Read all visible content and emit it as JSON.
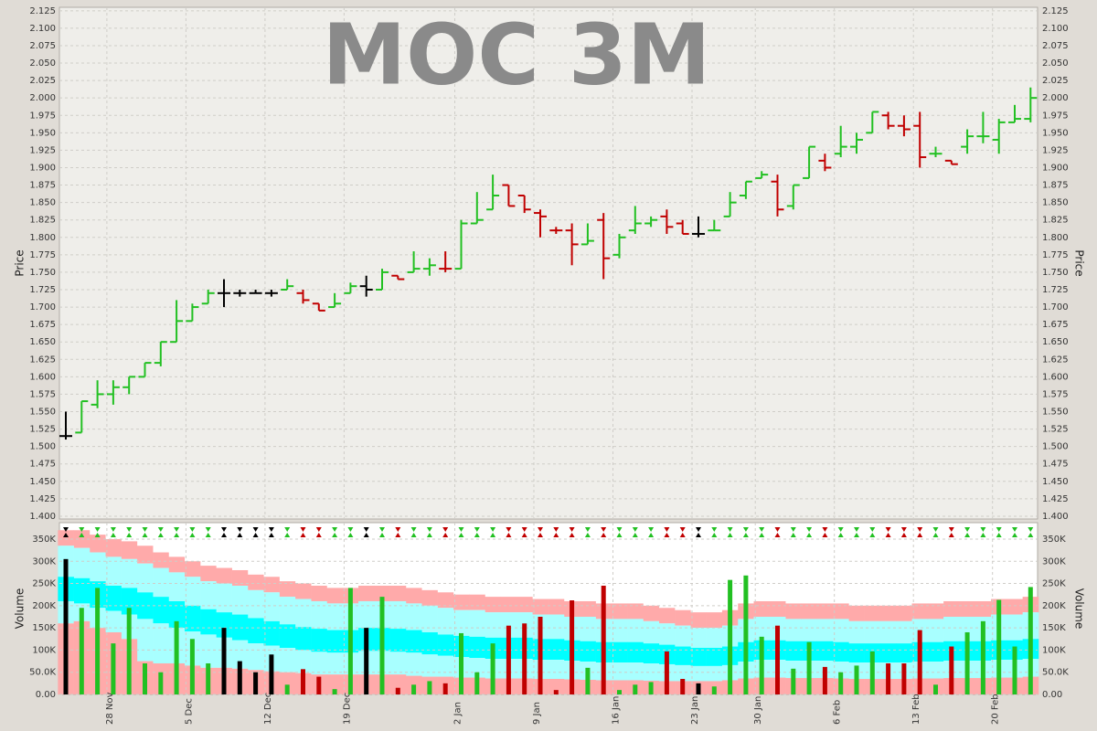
{
  "chart_data": [
    {
      "type": "ohlc",
      "title": "MOC 3M",
      "y_label": "Price",
      "grid": true,
      "ylim": [
        1.396,
        2.13
      ],
      "yticks": [
        {
          "value": 1.4,
          "label": "1.400"
        },
        {
          "value": 1.425,
          "label": "1.425"
        },
        {
          "value": 1.45,
          "label": "1.450"
        },
        {
          "value": 1.475,
          "label": "1.475"
        },
        {
          "value": 1.5,
          "label": "1.500"
        },
        {
          "value": 1.525,
          "label": "1.525"
        },
        {
          "value": 1.55,
          "label": "1.550"
        },
        {
          "value": 1.575,
          "label": "1.575"
        },
        {
          "value": 1.6,
          "label": "1.600"
        },
        {
          "value": 1.625,
          "label": "1.625"
        },
        {
          "value": 1.65,
          "label": "1.650"
        },
        {
          "value": 1.675,
          "label": "1.675"
        },
        {
          "value": 1.7,
          "label": "1.700"
        },
        {
          "value": 1.725,
          "label": "1.725"
        },
        {
          "value": 1.75,
          "label": "1.750"
        },
        {
          "value": 1.775,
          "label": "1.775"
        },
        {
          "value": 1.8,
          "label": "1.800"
        },
        {
          "value": 1.825,
          "label": "1.825"
        },
        {
          "value": 1.85,
          "label": "1.850"
        },
        {
          "value": 1.875,
          "label": "1.875"
        },
        {
          "value": 1.9,
          "label": "1.900"
        },
        {
          "value": 1.925,
          "label": "1.925"
        },
        {
          "value": 1.95,
          "label": "1.950"
        },
        {
          "value": 1.975,
          "label": "1.975"
        },
        {
          "value": 2.0,
          "label": "2.000"
        },
        {
          "value": 2.025,
          "label": "2.025"
        },
        {
          "value": 2.05,
          "label": "2.050"
        },
        {
          "value": 2.075,
          "label": "2.075"
        },
        {
          "value": 2.1,
          "label": "2.100"
        },
        {
          "value": 2.125,
          "label": "2.125"
        }
      ],
      "open": [
        1.515,
        1.52,
        1.56,
        1.575,
        1.585,
        1.6,
        1.62,
        1.65,
        1.68,
        1.705,
        1.72,
        1.72,
        1.72,
        1.72,
        1.725,
        1.72,
        1.705,
        1.7,
        1.72,
        1.73,
        1.725,
        1.745,
        1.75,
        1.755,
        1.755,
        1.755,
        1.82,
        1.84,
        1.875,
        1.86,
        1.835,
        1.81,
        1.81,
        1.79,
        1.825,
        1.775,
        1.81,
        1.82,
        1.83,
        1.82,
        1.805,
        1.81,
        1.83,
        1.86,
        1.885,
        1.88,
        1.845,
        1.885,
        1.91,
        1.92,
        1.93,
        1.95,
        1.975,
        1.96,
        1.96,
        1.92,
        1.91,
        1.93,
        1.945,
        1.94,
        1.965,
        1.97
      ],
      "high": [
        1.55,
        1.565,
        1.595,
        1.595,
        1.6,
        1.62,
        1.65,
        1.71,
        1.705,
        1.725,
        1.74,
        1.725,
        1.725,
        1.725,
        1.74,
        1.725,
        1.705,
        1.72,
        1.735,
        1.745,
        1.755,
        1.745,
        1.78,
        1.77,
        1.78,
        1.825,
        1.865,
        1.89,
        1.875,
        1.86,
        1.84,
        1.815,
        1.82,
        1.82,
        1.835,
        1.805,
        1.845,
        1.83,
        1.84,
        1.825,
        1.83,
        1.825,
        1.865,
        1.88,
        1.895,
        1.89,
        1.875,
        1.93,
        1.92,
        1.96,
        1.95,
        1.98,
        1.98,
        1.975,
        1.98,
        1.93,
        1.91,
        1.955,
        1.98,
        1.97,
        1.99,
        2.015
      ],
      "low": [
        1.51,
        1.52,
        1.555,
        1.56,
        1.575,
        1.6,
        1.615,
        1.65,
        1.68,
        1.705,
        1.7,
        1.715,
        1.72,
        1.715,
        1.725,
        1.705,
        1.695,
        1.7,
        1.72,
        1.715,
        1.725,
        1.74,
        1.75,
        1.745,
        1.75,
        1.755,
        1.82,
        1.84,
        1.845,
        1.835,
        1.8,
        1.805,
        1.76,
        1.79,
        1.74,
        1.77,
        1.805,
        1.815,
        1.805,
        1.805,
        1.8,
        1.81,
        1.83,
        1.855,
        1.885,
        1.83,
        1.84,
        1.885,
        1.895,
        1.915,
        1.92,
        1.95,
        1.955,
        1.945,
        1.9,
        1.915,
        1.905,
        1.92,
        1.935,
        1.92,
        1.965,
        1.965
      ],
      "close": [
        1.515,
        1.565,
        1.575,
        1.585,
        1.6,
        1.62,
        1.65,
        1.68,
        1.7,
        1.72,
        1.72,
        1.72,
        1.72,
        1.72,
        1.73,
        1.71,
        1.695,
        1.705,
        1.73,
        1.725,
        1.75,
        1.74,
        1.755,
        1.76,
        1.755,
        1.82,
        1.825,
        1.86,
        1.845,
        1.84,
        1.83,
        1.81,
        1.79,
        1.795,
        1.77,
        1.8,
        1.82,
        1.825,
        1.815,
        1.805,
        1.805,
        1.81,
        1.85,
        1.88,
        1.89,
        1.84,
        1.875,
        1.93,
        1.9,
        1.93,
        1.94,
        1.98,
        1.96,
        1.955,
        1.915,
        1.92,
        1.905,
        1.945,
        1.945,
        1.965,
        1.97,
        2.0
      ],
      "colors": [
        "#000000",
        "#22c022",
        "#22c022",
        "#22c022",
        "#22c022",
        "#22c022",
        "#22c022",
        "#22c022",
        "#22c022",
        "#22c022",
        "#000000",
        "#000000",
        "#000000",
        "#000000",
        "#22c022",
        "#c00000",
        "#c00000",
        "#22c022",
        "#22c022",
        "#000000",
        "#22c022",
        "#c00000",
        "#22c022",
        "#22c022",
        "#c00000",
        "#22c022",
        "#22c022",
        "#22c022",
        "#c00000",
        "#c00000",
        "#c00000",
        "#c00000",
        "#c00000",
        "#22c022",
        "#c00000",
        "#22c022",
        "#22c022",
        "#22c022",
        "#c00000",
        "#c00000",
        "#000000",
        "#22c022",
        "#22c022",
        "#22c022",
        "#22c022",
        "#c00000",
        "#22c022",
        "#22c022",
        "#c00000",
        "#22c022",
        "#22c022",
        "#22c022",
        "#c00000",
        "#c00000",
        "#c00000",
        "#22c022",
        "#c00000",
        "#22c022",
        "#22c022",
        "#22c022",
        "#22c022",
        "#22c022"
      ]
    },
    {
      "type": "bar",
      "y_label": "Volume",
      "grid": true,
      "ylim": [
        0,
        387000
      ],
      "yticks": [
        {
          "value": 0,
          "label": "0.00"
        },
        {
          "value": 50000,
          "label": "50.0K"
        },
        {
          "value": 100000,
          "label": "100K"
        },
        {
          "value": 150000,
          "label": "150K"
        },
        {
          "value": 200000,
          "label": "200K"
        },
        {
          "value": 250000,
          "label": "250K"
        },
        {
          "value": 300000,
          "label": "300K"
        },
        {
          "value": 350000,
          "label": "350K"
        }
      ],
      "categories": [
        null,
        null,
        null,
        "28 Nov",
        null,
        null,
        null,
        null,
        "5 Dec",
        null,
        null,
        null,
        null,
        "12 Dec",
        null,
        null,
        null,
        null,
        "19 Dec",
        null,
        null,
        null,
        null,
        null,
        null,
        "2 Jan",
        null,
        null,
        null,
        null,
        "9 Jan",
        null,
        null,
        null,
        null,
        "16 Jan",
        null,
        null,
        null,
        null,
        "23 Jan",
        null,
        null,
        null,
        "30 Jan",
        null,
        null,
        null,
        null,
        "6 Feb",
        null,
        null,
        null,
        null,
        "13 Feb",
        null,
        null,
        null,
        null,
        "20 Feb",
        null,
        null
      ],
      "values": [
        305000,
        195000,
        240000,
        115000,
        195000,
        70000,
        50000,
        165000,
        125000,
        70000,
        150000,
        75000,
        50000,
        90000,
        22000,
        57000,
        40000,
        12000,
        240000,
        150000,
        220000,
        15000,
        22000,
        30000,
        25000,
        138000,
        50000,
        115000,
        155000,
        160000,
        175000,
        10000,
        212000,
        60000,
        245000,
        10000,
        22000,
        28000,
        97000,
        35000,
        25000,
        18000,
        258000,
        268000,
        130000,
        155000,
        58000,
        118000,
        62000,
        50000,
        65000,
        97000,
        70000,
        70000,
        145000,
        22000,
        108000,
        140000,
        165000,
        213000,
        108000,
        242000
      ],
      "bands": [
        {
          "color": "#ffaaaa",
          "values": [
            370000,
            370000,
            360000,
            350000,
            345000,
            335000,
            320000,
            310000,
            300000,
            290000,
            285000,
            280000,
            270000,
            265000,
            255000,
            250000,
            245000,
            240000,
            240000,
            245000,
            245000,
            245000,
            240000,
            235000,
            230000,
            225000,
            225000,
            220000,
            220000,
            220000,
            215000,
            215000,
            210000,
            210000,
            205000,
            205000,
            205000,
            200000,
            195000,
            190000,
            185000,
            185000,
            190000,
            205000,
            210000,
            210000,
            205000,
            205000,
            205000,
            205000,
            200000,
            200000,
            200000,
            200000,
            205000,
            205000,
            210000,
            210000,
            210000,
            215000,
            215000,
            220000
          ]
        },
        {
          "color": "#a8ffff",
          "values": [
            335000,
            330000,
            320000,
            310000,
            305000,
            295000,
            285000,
            275000,
            265000,
            255000,
            250000,
            245000,
            235000,
            230000,
            220000,
            215000,
            210000,
            205000,
            205000,
            210000,
            210000,
            210000,
            205000,
            200000,
            195000,
            190000,
            190000,
            185000,
            185000,
            185000,
            180000,
            180000,
            175000,
            175000,
            170000,
            170000,
            170000,
            165000,
            160000,
            155000,
            150000,
            150000,
            155000,
            170000,
            175000,
            175000,
            170000,
            170000,
            170000,
            170000,
            165000,
            165000,
            165000,
            165000,
            170000,
            170000,
            175000,
            175000,
            175000,
            180000,
            180000,
            185000
          ]
        },
        {
          "color": "#00ffff",
          "values": [
            265000,
            262000,
            255000,
            245000,
            240000,
            230000,
            220000,
            210000,
            200000,
            192000,
            185000,
            180000,
            172000,
            165000,
            158000,
            152000,
            148000,
            145000,
            145000,
            150000,
            150000,
            148000,
            145000,
            140000,
            135000,
            132000,
            130000,
            128000,
            128000,
            128000,
            125000,
            125000,
            122000,
            120000,
            118000,
            118000,
            118000,
            115000,
            112000,
            108000,
            105000,
            105000,
            108000,
            118000,
            122000,
            122000,
            120000,
            120000,
            120000,
            118000,
            115000,
            115000,
            115000,
            115000,
            118000,
            118000,
            120000,
            120000,
            120000,
            122000,
            122000,
            125000
          ]
        },
        {
          "color": "#a8ffff",
          "values": [
            210000,
            205000,
            195000,
            188000,
            180000,
            170000,
            160000,
            150000,
            142000,
            135000,
            128000,
            122000,
            115000,
            110000,
            105000,
            100000,
            96000,
            94000,
            94000,
            98000,
            98000,
            96000,
            94000,
            90000,
            87000,
            84000,
            82000,
            80000,
            80000,
            80000,
            78000,
            78000,
            76000,
            74000,
            72000,
            72000,
            72000,
            70000,
            68000,
            66000,
            64000,
            64000,
            66000,
            74000,
            78000,
            78000,
            76000,
            76000,
            76000,
            74000,
            72000,
            72000,
            72000,
            72000,
            74000,
            74000,
            76000,
            76000,
            76000,
            78000,
            78000,
            80000
          ]
        },
        {
          "color": "#ffaaaa",
          "values": [
            160000,
            165000,
            150000,
            140000,
            125000,
            75000,
            70000,
            70000,
            65000,
            60000,
            60000,
            58000,
            55000,
            52000,
            50000,
            48000,
            45000,
            45000,
            45000,
            45000,
            45000,
            45000,
            42000,
            40000,
            40000,
            38000,
            38000,
            36000,
            36000,
            36000,
            35000,
            35000,
            34000,
            33000,
            32000,
            32000,
            32000,
            31000,
            30000,
            30000,
            30000,
            30000,
            32000,
            36000,
            38000,
            38000,
            37000,
            37000,
            37000,
            36000,
            35000,
            35000,
            35000,
            35000,
            36000,
            36000,
            37000,
            37000,
            37000,
            38000,
            38000,
            40000
          ]
        }
      ]
    }
  ]
}
